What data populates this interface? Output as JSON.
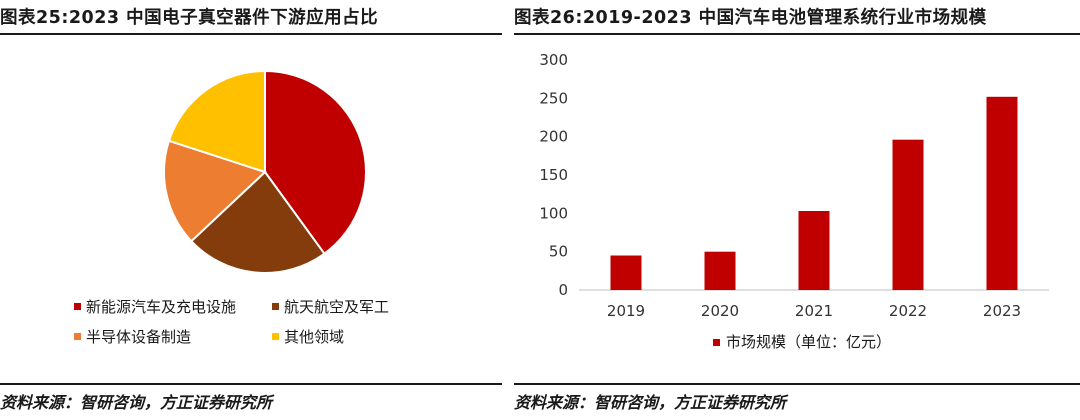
{
  "colors": {
    "new_energy": "#C00000",
    "aerospace": "#843C0C",
    "semiconductor": "#ED7D31",
    "other": "#FFC000",
    "bar": "#C00000"
  },
  "chart_data": [
    {
      "type": "pie",
      "title": "图表25:2023 中国电子真空器件下游应用占比",
      "source": "资料来源：智研咨询，方正证券研究所",
      "legend_position": "bottom",
      "slices": [
        {
          "name": "新能源汽车及充电设施",
          "value": 40
        },
        {
          "name": "航天航空及军工",
          "value": 23
        },
        {
          "name": "半导体设备制造",
          "value": 17
        },
        {
          "name": "其他领域",
          "value": 20
        }
      ]
    },
    {
      "type": "bar",
      "title": "图表26:2019-2023 中国汽车电池管理系统行业市场规模",
      "source": "资料来源：智研咨询，方正证券研究所",
      "categories": [
        "2019",
        "2020",
        "2021",
        "2022",
        "2023"
      ],
      "series": [
        {
          "name": "市场规模（单位：亿元）",
          "values": [
            45,
            50,
            103,
            196,
            252
          ]
        }
      ],
      "ylim": [
        0,
        300
      ],
      "yticks": [
        "0",
        "50",
        "100",
        "150",
        "200",
        "250",
        "300"
      ],
      "grid": false,
      "legend_position": "bottom"
    }
  ]
}
